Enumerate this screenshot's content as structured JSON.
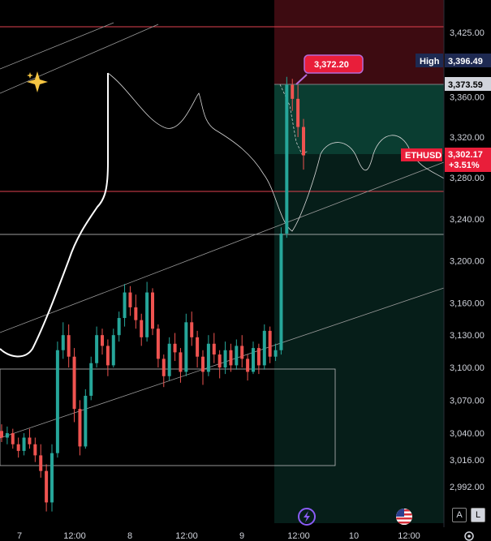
{
  "chart_data": {
    "type": "candlestick",
    "symbol": "ETHUSD",
    "price_axis": {
      "ticks": [
        "3,425.00",
        "3,360.00",
        "3,320.00",
        "3,280.00",
        "3,240.00",
        "3,200.00",
        "3,160.00",
        "3,130.00",
        "3,100.00",
        "3,070.00",
        "3,040.00",
        "3,016.00",
        "2,992.00"
      ],
      "tick_values": [
        3425,
        3360,
        3320,
        3280,
        3240,
        3200,
        3160,
        3130,
        3100,
        3070,
        3040,
        3016,
        2992
      ],
      "scale": "log"
    },
    "time_axis": {
      "ticks": [
        "7",
        "12:00",
        "8",
        "12:00",
        "9",
        "12:00",
        "10",
        "12:00"
      ]
    },
    "high_label": {
      "text": "High",
      "value": "3,396.49"
    },
    "position_marker": "3,373.59",
    "last_price": {
      "symbol": "ETHUSD",
      "value": "3,302.17",
      "change": "+3.51%"
    },
    "callout": "3,372.20",
    "candles": [
      [
        3042,
        3048,
        3032,
        3036
      ],
      [
        3036,
        3046,
        3030,
        3040
      ],
      [
        3040,
        3044,
        3026,
        3030
      ],
      [
        3030,
        3036,
        3018,
        3024
      ],
      [
        3024,
        3040,
        3020,
        3036
      ],
      [
        3036,
        3044,
        3026,
        3030
      ],
      [
        3030,
        3036,
        3014,
        3020
      ],
      [
        3020,
        3030,
        3000,
        3006
      ],
      [
        3006,
        3012,
        2970,
        2978
      ],
      [
        2978,
        3030,
        2970,
        3022
      ],
      [
        3022,
        3124,
        3018,
        3116
      ],
      [
        3116,
        3142,
        3108,
        3130
      ],
      [
        3130,
        3140,
        3100,
        3110
      ],
      [
        3110,
        3118,
        3050,
        3062
      ],
      [
        3062,
        3070,
        3020,
        3028
      ],
      [
        3028,
        3080,
        3026,
        3074
      ],
      [
        3074,
        3110,
        3070,
        3104
      ],
      [
        3104,
        3138,
        3100,
        3130
      ],
      [
        3130,
        3136,
        3112,
        3120
      ],
      [
        3120,
        3126,
        3092,
        3102
      ],
      [
        3102,
        3136,
        3100,
        3130
      ],
      [
        3130,
        3152,
        3124,
        3146
      ],
      [
        3146,
        3178,
        3138,
        3170
      ],
      [
        3170,
        3176,
        3148,
        3156
      ],
      [
        3156,
        3168,
        3136,
        3144
      ],
      [
        3144,
        3150,
        3120,
        3128
      ],
      [
        3128,
        3180,
        3124,
        3170
      ],
      [
        3170,
        3174,
        3130,
        3136
      ],
      [
        3136,
        3140,
        3100,
        3108
      ],
      [
        3108,
        3112,
        3082,
        3092
      ],
      [
        3092,
        3128,
        3088,
        3122
      ],
      [
        3122,
        3132,
        3106,
        3114
      ],
      [
        3114,
        3118,
        3086,
        3096
      ],
      [
        3096,
        3150,
        3092,
        3142
      ],
      [
        3142,
        3152,
        3120,
        3128
      ],
      [
        3128,
        3134,
        3100,
        3110
      ],
      [
        3110,
        3116,
        3084,
        3096
      ],
      [
        3096,
        3130,
        3092,
        3122
      ],
      [
        3122,
        3132,
        3104,
        3112
      ],
      [
        3112,
        3116,
        3090,
        3100
      ],
      [
        3100,
        3124,
        3094,
        3116
      ],
      [
        3116,
        3122,
        3096,
        3102
      ],
      [
        3102,
        3126,
        3098,
        3120
      ],
      [
        3120,
        3130,
        3100,
        3108
      ],
      [
        3108,
        3112,
        3088,
        3096
      ],
      [
        3096,
        3124,
        3094,
        3118
      ],
      [
        3118,
        3122,
        3094,
        3102
      ],
      [
        3102,
        3140,
        3098,
        3134
      ],
      [
        3134,
        3138,
        3104,
        3110
      ],
      [
        3110,
        3122,
        3106,
        3116
      ],
      [
        3116,
        3232,
        3112,
        3226
      ],
      [
        3226,
        3380,
        3222,
        3372
      ],
      [
        3372,
        3378,
        3346,
        3358
      ],
      [
        3358,
        3372,
        3320,
        3330
      ],
      [
        3330,
        3338,
        3288,
        3302
      ]
    ]
  },
  "toolbar": {
    "auto_label": "A",
    "log_label": "L"
  },
  "icons": {
    "flash": "flash-icon",
    "flag": "us-flag-icon",
    "sparkle": "sparkle-icon",
    "settings": "gear-icon"
  },
  "colors": {
    "up": "#26a69a",
    "down": "#ef5350",
    "accent": "#e91e3a",
    "high_tag": "#1e2a52",
    "zone_green": "#0c3a2f",
    "zone_red": "#3a0c10"
  }
}
